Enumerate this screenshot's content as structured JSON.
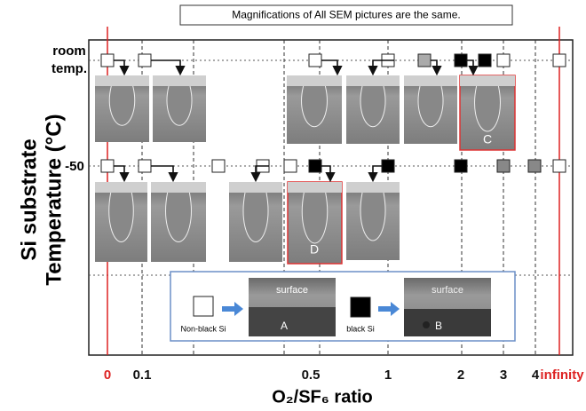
{
  "note_box": "Magnifications of All SEM pictures are the same.",
  "y_axis": {
    "title_lines": [
      "Si substrate",
      "Temperature (°C)"
    ],
    "labels": [
      "room",
      "temp.",
      "-50"
    ]
  },
  "x_axis": {
    "title": "O₂/SF₆ ratio",
    "labels": [
      "0",
      "0.1",
      "0.5",
      "1",
      "2",
      "3",
      "4",
      "infinity"
    ]
  },
  "image_labels": [
    "C",
    "D"
  ],
  "legend": {
    "non_black": {
      "image_text": "surface",
      "caption": "Non-black Si",
      "letter": "A"
    },
    "black": {
      "image_text": "surface",
      "caption": "black Si",
      "letter": "B"
    }
  }
}
